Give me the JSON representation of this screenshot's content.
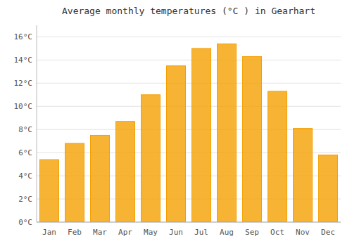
{
  "chart_data": {
    "type": "bar",
    "title": "Average monthly temperatures (°C ) in Gearhart",
    "categories": [
      "Jan",
      "Feb",
      "Mar",
      "Apr",
      "May",
      "Jun",
      "Jul",
      "Aug",
      "Sep",
      "Oct",
      "Nov",
      "Dec"
    ],
    "values": [
      5.4,
      6.8,
      7.5,
      8.7,
      11.0,
      13.5,
      15.0,
      15.4,
      14.3,
      11.3,
      8.1,
      5.8
    ],
    "color": "#F5A000",
    "ylim": [
      0,
      17
    ],
    "yticks": [
      {
        "value": 0,
        "label": "0°C"
      },
      {
        "value": 2,
        "label": "2°C"
      },
      {
        "value": 4,
        "label": "4°C"
      },
      {
        "value": 6,
        "label": "6°C"
      },
      {
        "value": 8,
        "label": "8°C"
      },
      {
        "value": 10,
        "label": "10°C"
      },
      {
        "value": 12,
        "label": "12°C"
      },
      {
        "value": 14,
        "label": "14°C"
      },
      {
        "value": 16,
        "label": "16°C"
      }
    ],
    "grid": true
  }
}
